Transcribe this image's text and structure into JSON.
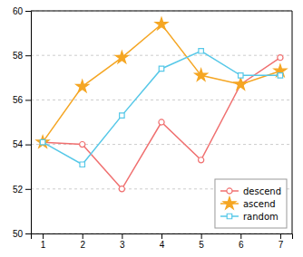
{
  "chart_data": {
    "type": "line",
    "x": [
      1,
      2,
      3,
      4,
      5,
      6,
      7
    ],
    "series": [
      {
        "name": "descend",
        "color": "#f07070",
        "marker": "circle",
        "values": [
          54.1,
          54.0,
          52.0,
          55.0,
          53.3,
          56.7,
          57.9
        ]
      },
      {
        "name": "ascend",
        "color": "#f5a623",
        "marker": "star",
        "values": [
          54.1,
          56.6,
          57.9,
          59.4,
          57.1,
          56.7,
          57.3
        ]
      },
      {
        "name": "random",
        "color": "#56c8e8",
        "marker": "square",
        "values": [
          54.1,
          53.1,
          55.3,
          57.4,
          58.2,
          57.1,
          57.1
        ]
      }
    ],
    "xlim": [
      0.7,
      7.3
    ],
    "ylim": [
      50,
      60
    ],
    "xticks": [
      1,
      2,
      3,
      4,
      5,
      6,
      7
    ],
    "yticks": [
      50,
      52,
      54,
      56,
      58,
      60
    ],
    "grid": "y",
    "legend": "lower right"
  }
}
